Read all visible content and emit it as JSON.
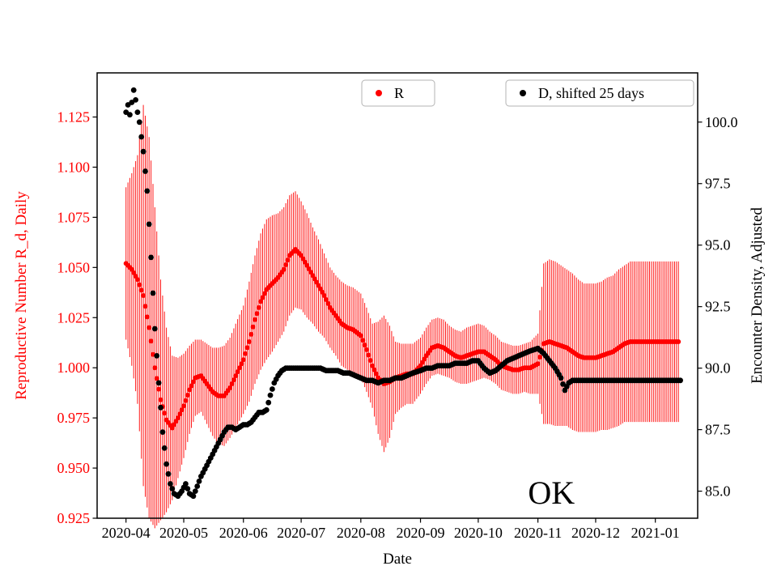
{
  "figure": {
    "background": "#ffffff"
  },
  "chart_data": {
    "type": "scatter",
    "title": "",
    "xlabel": "Date",
    "ylabel_left": "Reproductive Number R_d, Daily",
    "ylabel_left_color": "#ff0000",
    "ylabel_right": "Encounter Density, Adjusted",
    "ylabel_right_color": "#000000",
    "grid": false,
    "legend_position": "top-inside",
    "xlim": [
      "2020-03-17",
      "2021-01-23"
    ],
    "ylim_left": [
      0.925,
      1.147
    ],
    "ylim_right": [
      83.9,
      102.0
    ],
    "yticks_left": [
      0.925,
      0.95,
      0.975,
      1.0,
      1.025,
      1.05,
      1.075,
      1.1,
      1.125
    ],
    "yticks_right": [
      85.0,
      87.5,
      90.0,
      92.5,
      95.0,
      97.5,
      100.0
    ],
    "x_ticks": [
      {
        "label": "2020-04",
        "date": "2020-04-01"
      },
      {
        "label": "2020-05",
        "date": "2020-05-01"
      },
      {
        "label": "2020-06",
        "date": "2020-06-01"
      },
      {
        "label": "2020-07",
        "date": "2020-07-01"
      },
      {
        "label": "2020-08",
        "date": "2020-08-01"
      },
      {
        "label": "2020-09",
        "date": "2020-09-01"
      },
      {
        "label": "2020-10",
        "date": "2020-10-01"
      },
      {
        "label": "2020-11",
        "date": "2020-11-01"
      },
      {
        "label": "2020-12",
        "date": "2020-12-01"
      },
      {
        "label": "2021-01",
        "date": "2021-01-01"
      }
    ],
    "legend": [
      {
        "label": "R",
        "color": "#ff0000"
      },
      {
        "label": "D, shifted 25 days",
        "color": "#000000"
      }
    ],
    "annotations": [
      {
        "text": "OK",
        "date": "2020-11-08",
        "axis": "left",
        "value": 0.936,
        "fontsize": 40
      }
    ],
    "series": [
      {
        "name": "R",
        "axis": "left",
        "color": "#ff0000",
        "marker": "o",
        "marker_r": 3,
        "has_errorbars": true,
        "dates": [
          "2020-04-01",
          "2020-04-04",
          "2020-04-07",
          "2020-04-10",
          "2020-04-13",
          "2020-04-16",
          "2020-04-19",
          "2020-04-22",
          "2020-04-25",
          "2020-04-28",
          "2020-05-01",
          "2020-05-04",
          "2020-05-07",
          "2020-05-10",
          "2020-05-13",
          "2020-05-16",
          "2020-05-19",
          "2020-05-22",
          "2020-05-25",
          "2020-05-28",
          "2020-06-01",
          "2020-06-04",
          "2020-06-07",
          "2020-06-10",
          "2020-06-13",
          "2020-06-16",
          "2020-06-19",
          "2020-06-22",
          "2020-06-25",
          "2020-06-28",
          "2020-07-01",
          "2020-07-04",
          "2020-07-07",
          "2020-07-10",
          "2020-07-13",
          "2020-07-16",
          "2020-07-19",
          "2020-07-22",
          "2020-07-25",
          "2020-07-28",
          "2020-08-01",
          "2020-08-04",
          "2020-08-07",
          "2020-08-10",
          "2020-08-13",
          "2020-08-16",
          "2020-08-19",
          "2020-08-22",
          "2020-08-25",
          "2020-08-28",
          "2020-09-01",
          "2020-09-04",
          "2020-09-07",
          "2020-09-10",
          "2020-09-13",
          "2020-09-16",
          "2020-09-19",
          "2020-09-22",
          "2020-09-25",
          "2020-09-28",
          "2020-10-01",
          "2020-10-04",
          "2020-10-07",
          "2020-10-10",
          "2020-10-13",
          "2020-10-16",
          "2020-10-19",
          "2020-10-22",
          "2020-10-25",
          "2020-10-28",
          "2020-11-01",
          "2020-11-04",
          "2020-11-07",
          "2020-11-10",
          "2020-11-13",
          "2020-11-16",
          "2020-11-19",
          "2020-11-22",
          "2020-11-25",
          "2020-11-28",
          "2020-12-01",
          "2020-12-04",
          "2020-12-07",
          "2020-12-10",
          "2020-12-13",
          "2020-12-16",
          "2020-12-19",
          "2020-12-22",
          "2020-12-25",
          "2020-12-28",
          "2021-01-01",
          "2021-01-04",
          "2021-01-07",
          "2021-01-10",
          "2021-01-13"
        ],
        "values": [
          1.052,
          1.049,
          1.044,
          1.036,
          1.02,
          1.0,
          0.984,
          0.974,
          0.97,
          0.975,
          0.981,
          0.989,
          0.995,
          0.996,
          0.992,
          0.988,
          0.986,
          0.986,
          0.99,
          0.996,
          1.004,
          1.013,
          1.024,
          1.033,
          1.039,
          1.042,
          1.045,
          1.049,
          1.056,
          1.059,
          1.056,
          1.051,
          1.046,
          1.041,
          1.036,
          1.03,
          1.026,
          1.022,
          1.02,
          1.019,
          1.016,
          1.009,
          1.001,
          0.995,
          0.992,
          0.993,
          0.995,
          0.996,
          0.997,
          0.997,
          1.001,
          1.006,
          1.01,
          1.011,
          1.01,
          1.008,
          1.006,
          1.005,
          1.006,
          1.007,
          1.008,
          1.008,
          1.006,
          1.004,
          1.001,
          1.0,
          0.999,
          0.999,
          1.0,
          1.0,
          1.002,
          1.012,
          1.013,
          1.012,
          1.011,
          1.01,
          1.008,
          1.006,
          1.005,
          1.005,
          1.005,
          1.006,
          1.007,
          1.008,
          1.01,
          1.012,
          1.013,
          1.013,
          1.013,
          1.013,
          1.013,
          1.013,
          1.013,
          1.013,
          1.013
        ],
        "err": [
          0.038,
          0.048,
          0.062,
          0.095,
          0.095,
          0.08,
          0.06,
          0.046,
          0.036,
          0.03,
          0.026,
          0.022,
          0.019,
          0.018,
          0.02,
          0.022,
          0.024,
          0.025,
          0.025,
          0.026,
          0.027,
          0.03,
          0.032,
          0.034,
          0.035,
          0.034,
          0.032,
          0.031,
          0.03,
          0.029,
          0.027,
          0.026,
          0.024,
          0.023,
          0.021,
          0.02,
          0.02,
          0.021,
          0.021,
          0.021,
          0.021,
          0.021,
          0.021,
          0.028,
          0.034,
          0.028,
          0.018,
          0.016,
          0.015,
          0.015,
          0.014,
          0.014,
          0.014,
          0.014,
          0.014,
          0.013,
          0.013,
          0.013,
          0.014,
          0.014,
          0.014,
          0.013,
          0.012,
          0.012,
          0.012,
          0.012,
          0.012,
          0.012,
          0.012,
          0.013,
          0.015,
          0.04,
          0.041,
          0.041,
          0.04,
          0.039,
          0.039,
          0.038,
          0.037,
          0.037,
          0.037,
          0.037,
          0.038,
          0.038,
          0.039,
          0.039,
          0.04,
          0.04,
          0.04,
          0.04,
          0.04,
          0.04,
          0.04,
          0.04,
          0.04
        ]
      },
      {
        "name": "D, shifted 25 days",
        "axis": "right",
        "color": "#000000",
        "marker": "o",
        "marker_r": 3.4,
        "has_errorbars": false,
        "dates": [
          "2020-04-01",
          "2020-04-02",
          "2020-04-03",
          "2020-04-04",
          "2020-04-05",
          "2020-04-06",
          "2020-04-07",
          "2020-04-08",
          "2020-04-10",
          "2020-04-12",
          "2020-04-14",
          "2020-04-16",
          "2020-04-18",
          "2020-04-20",
          "2020-04-22",
          "2020-04-24",
          "2020-04-26",
          "2020-04-28",
          "2020-04-30",
          "2020-05-02",
          "2020-05-04",
          "2020-05-06",
          "2020-05-08",
          "2020-05-10",
          "2020-05-12",
          "2020-05-14",
          "2020-05-16",
          "2020-05-18",
          "2020-05-20",
          "2020-05-22",
          "2020-05-24",
          "2020-05-26",
          "2020-05-28",
          "2020-05-30",
          "2020-06-01",
          "2020-06-03",
          "2020-06-05",
          "2020-06-07",
          "2020-06-09",
          "2020-06-11",
          "2020-06-13",
          "2020-06-15",
          "2020-06-17",
          "2020-06-19",
          "2020-06-21",
          "2020-06-23",
          "2020-06-25",
          "2020-06-27",
          "2020-06-29",
          "2020-07-02",
          "2020-07-05",
          "2020-07-08",
          "2020-07-11",
          "2020-07-14",
          "2020-07-17",
          "2020-07-20",
          "2020-07-23",
          "2020-07-26",
          "2020-07-29",
          "2020-08-01",
          "2020-08-04",
          "2020-08-07",
          "2020-08-10",
          "2020-08-13",
          "2020-08-16",
          "2020-08-19",
          "2020-08-22",
          "2020-08-25",
          "2020-08-28",
          "2020-09-01",
          "2020-09-04",
          "2020-09-07",
          "2020-09-10",
          "2020-09-13",
          "2020-09-16",
          "2020-09-19",
          "2020-09-22",
          "2020-09-25",
          "2020-09-28",
          "2020-10-01",
          "2020-10-04",
          "2020-10-07",
          "2020-10-10",
          "2020-10-13",
          "2020-10-16",
          "2020-10-19",
          "2020-10-22",
          "2020-10-25",
          "2020-10-28",
          "2020-11-01",
          "2020-11-04",
          "2020-11-07",
          "2020-11-10",
          "2020-11-13",
          "2020-11-15",
          "2020-11-17",
          "2020-11-19",
          "2020-11-22",
          "2020-11-25",
          "2020-11-28",
          "2020-12-01",
          "2020-12-05",
          "2020-12-10",
          "2020-12-15",
          "2020-12-20",
          "2020-12-25",
          "2020-12-30",
          "2021-01-04",
          "2021-01-09",
          "2021-01-14"
        ],
        "values": [
          100.4,
          100.7,
          100.3,
          100.8,
          101.3,
          100.9,
          100.4,
          100.0,
          98.8,
          97.2,
          94.5,
          91.6,
          89.4,
          87.4,
          86.1,
          85.3,
          84.9,
          84.8,
          85.0,
          85.3,
          84.9,
          84.8,
          85.2,
          85.6,
          85.9,
          86.2,
          86.5,
          86.8,
          87.1,
          87.4,
          87.6,
          87.6,
          87.5,
          87.6,
          87.7,
          87.7,
          87.8,
          88.0,
          88.2,
          88.2,
          88.3,
          88.9,
          89.4,
          89.7,
          89.9,
          90.0,
          90.0,
          90.0,
          90.0,
          90.0,
          90.0,
          90.0,
          90.0,
          89.9,
          89.9,
          89.9,
          89.8,
          89.8,
          89.7,
          89.6,
          89.5,
          89.5,
          89.4,
          89.5,
          89.5,
          89.6,
          89.6,
          89.7,
          89.8,
          89.9,
          90.0,
          90.0,
          90.1,
          90.1,
          90.1,
          90.2,
          90.2,
          90.2,
          90.3,
          90.3,
          90.0,
          89.8,
          89.9,
          90.1,
          90.3,
          90.4,
          90.5,
          90.6,
          90.7,
          90.8,
          90.6,
          90.3,
          90.0,
          89.6,
          89.1,
          89.4,
          89.5,
          89.5,
          89.5,
          89.5,
          89.5,
          89.5,
          89.5,
          89.5,
          89.5,
          89.5,
          89.5,
          89.5,
          89.5,
          89.5
        ]
      }
    ]
  }
}
